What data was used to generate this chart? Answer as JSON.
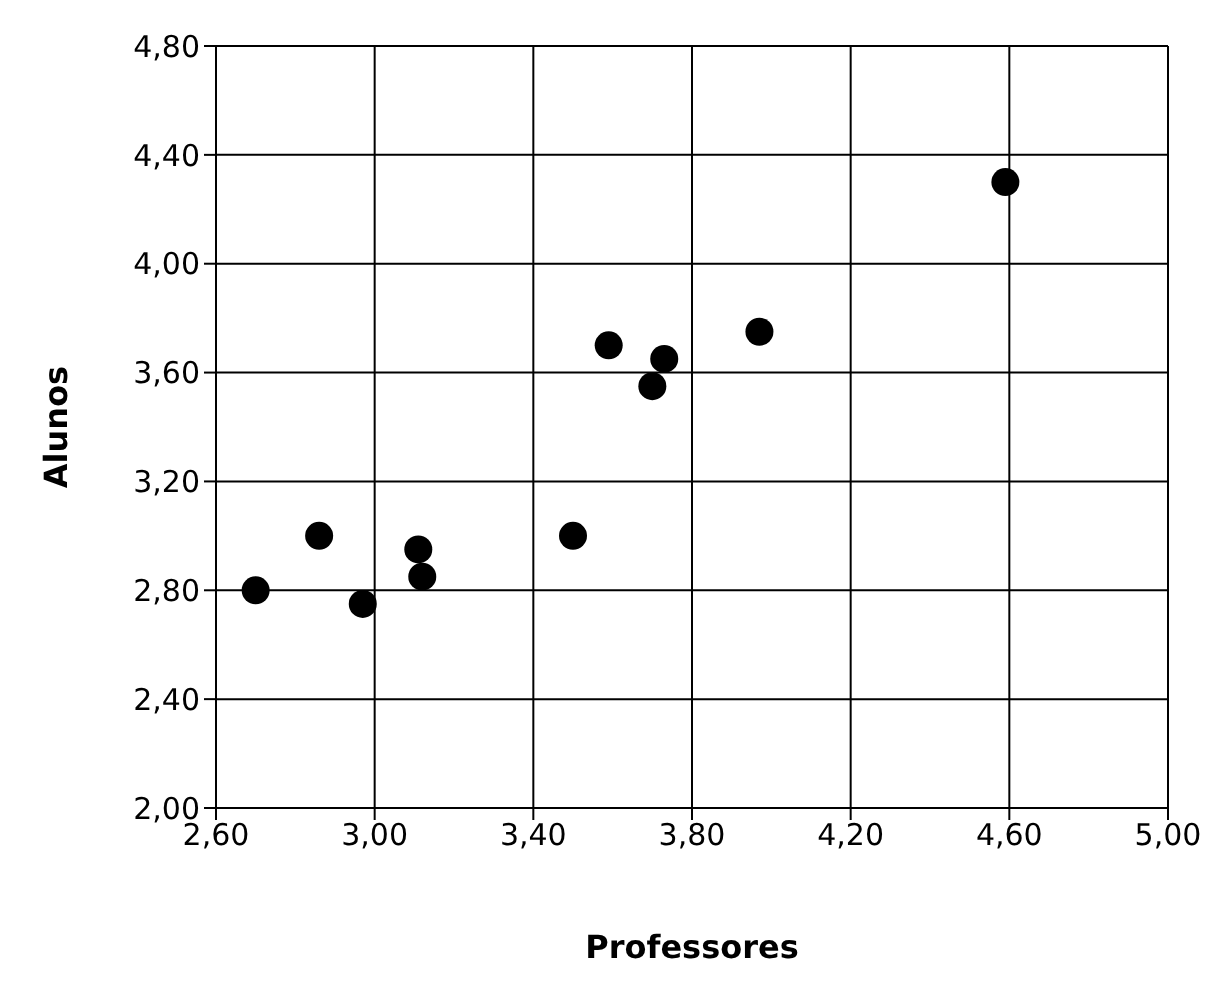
{
  "chart_data": {
    "type": "scatter",
    "xlabel": "Professores",
    "ylabel": "Alunos",
    "x": [
      2.7,
      2.86,
      2.97,
      3.11,
      3.12,
      3.5,
      3.59,
      3.7,
      3.73,
      3.97,
      4.59
    ],
    "series": [
      {
        "color": "#000000",
        "values": [
          2.8,
          3.0,
          2.75,
          2.95,
          2.85,
          3.0,
          3.7,
          3.55,
          3.65,
          3.75,
          4.3
        ]
      }
    ],
    "xlim": [
      2.6,
      5.0
    ],
    "xticks": [
      {
        "value": 2.6,
        "label": "2,60"
      },
      {
        "value": 3.0,
        "label": "3,00"
      },
      {
        "value": 3.4,
        "label": "3,40"
      },
      {
        "value": 3.8,
        "label": "3,80"
      },
      {
        "value": 4.2,
        "label": "4,20"
      },
      {
        "value": 4.6,
        "label": "4,60"
      },
      {
        "value": 5.0,
        "label": "5,00"
      }
    ],
    "ylim": [
      2.0,
      4.8
    ],
    "yticks": [
      {
        "value": 2.0,
        "label": "2,00"
      },
      {
        "value": 2.4,
        "label": "2,40"
      },
      {
        "value": 2.8,
        "label": "2,80"
      },
      {
        "value": 3.2,
        "label": "3,20"
      },
      {
        "value": 3.6,
        "label": "3,60"
      },
      {
        "value": 4.0,
        "label": "4,00"
      },
      {
        "value": 4.4,
        "label": "4,40"
      },
      {
        "value": 4.8,
        "label": "4,80"
      }
    ],
    "grid": true,
    "marker": "circle"
  }
}
